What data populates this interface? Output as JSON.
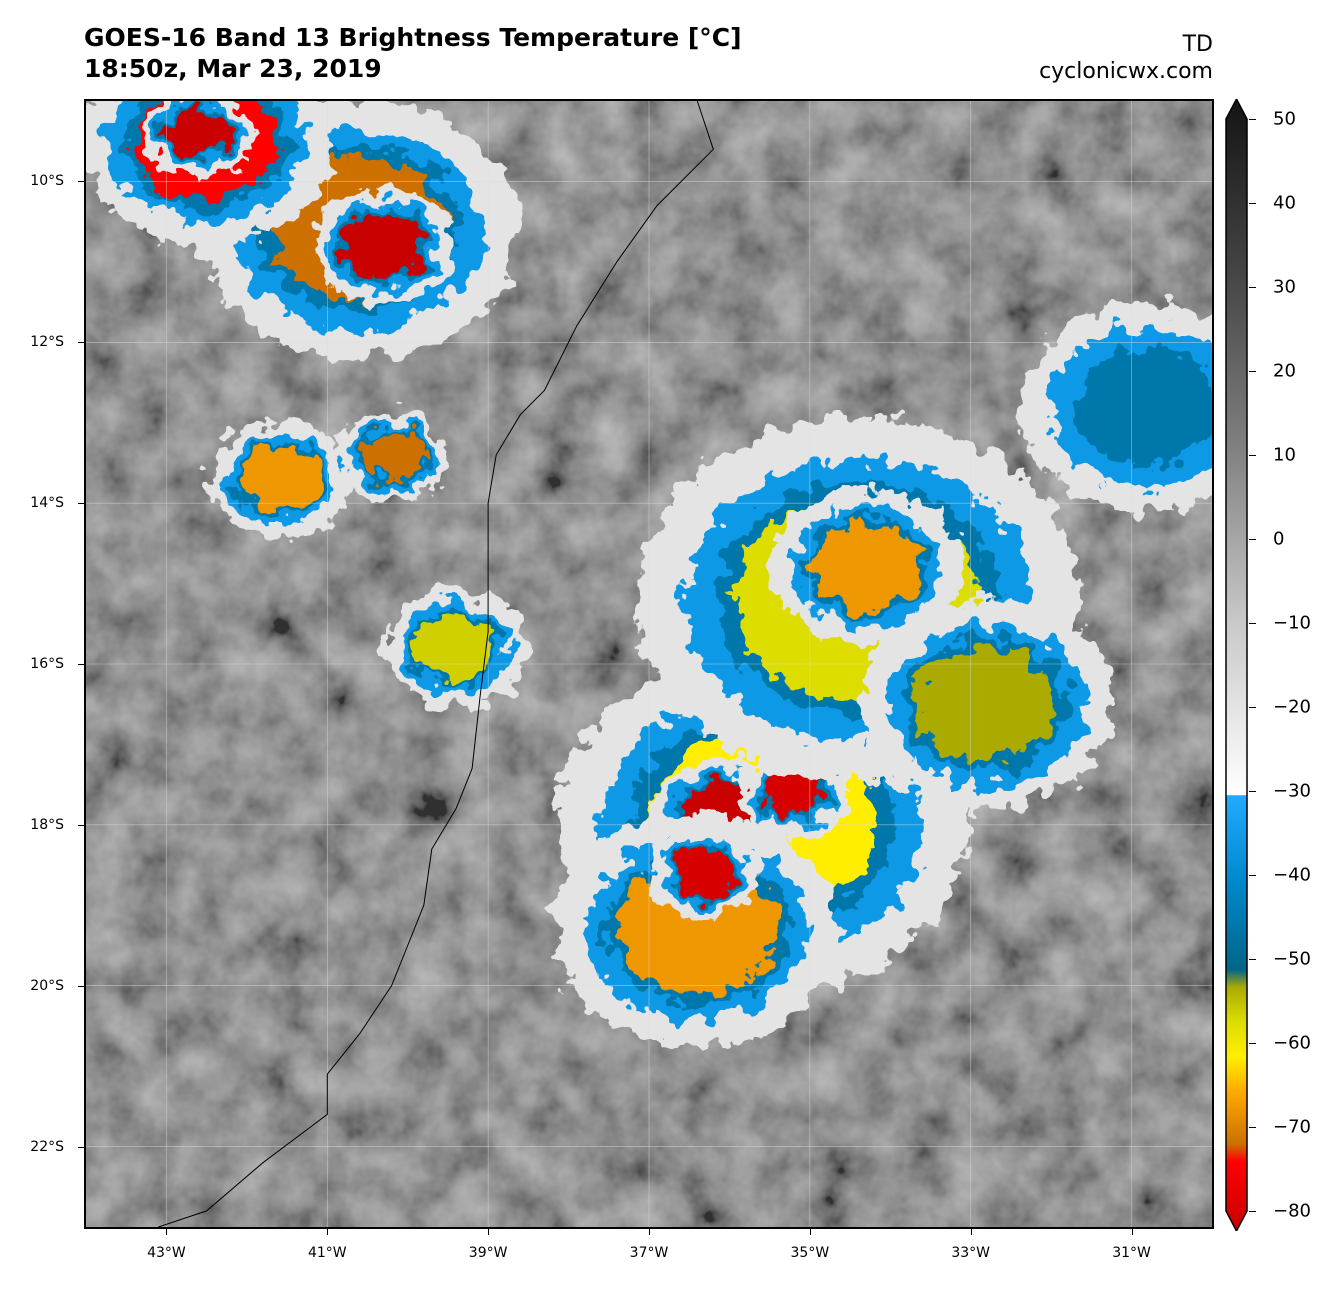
{
  "header": {
    "title_line1": "GOES-16 Band 13 Brightness Temperature [°C]",
    "title_line2": "18:50z, Mar 23, 2019",
    "storm_label": "TD",
    "site": "cyclonicwx.com"
  },
  "map": {
    "extent": {
      "lon_min": -44.0,
      "lon_max": -30.0,
      "lat_min": -23.0,
      "lat_max": -9.0
    },
    "lat_labels": [
      {
        "text": "10°S",
        "lat": -10
      },
      {
        "text": "12°S",
        "lat": -12
      },
      {
        "text": "14°S",
        "lat": -14
      },
      {
        "text": "16°S",
        "lat": -16
      },
      {
        "text": "18°S",
        "lat": -18
      },
      {
        "text": "20°S",
        "lat": -20
      },
      {
        "text": "22°S",
        "lat": -22
      }
    ],
    "lon_labels": [
      {
        "text": "43°W",
        "lon": -43
      },
      {
        "text": "41°W",
        "lon": -41
      },
      {
        "text": "39°W",
        "lon": -39
      },
      {
        "text": "37°W",
        "lon": -37
      },
      {
        "text": "35°W",
        "lon": -35
      },
      {
        "text": "33°W",
        "lon": -33
      },
      {
        "text": "31°W",
        "lon": -31
      }
    ],
    "coastline": [
      [
        -36.4,
        -9.0
      ],
      [
        -36.2,
        -9.6
      ],
      [
        -36.9,
        -10.3
      ],
      [
        -37.4,
        -11.0
      ],
      [
        -37.9,
        -11.8
      ],
      [
        -38.3,
        -12.6
      ],
      [
        -38.6,
        -12.9
      ],
      [
        -38.9,
        -13.4
      ],
      [
        -39.0,
        -14.0
      ],
      [
        -39.0,
        -14.8
      ],
      [
        -39.0,
        -15.6
      ],
      [
        -39.1,
        -16.4
      ],
      [
        -39.2,
        -17.3
      ],
      [
        -39.4,
        -17.8
      ],
      [
        -39.7,
        -18.3
      ],
      [
        -39.8,
        -19.0
      ],
      [
        -40.0,
        -19.5
      ],
      [
        -40.2,
        -20.0
      ],
      [
        -40.6,
        -20.6
      ],
      [
        -41.0,
        -21.1
      ],
      [
        -41.0,
        -21.6
      ],
      [
        -41.8,
        -22.2
      ],
      [
        -42.5,
        -22.8
      ],
      [
        -43.1,
        -23.0
      ]
    ],
    "cloud_features": [
      {
        "name": "system-core",
        "lon": -35.6,
        "lat": -18.0,
        "r": 1.3,
        "temp": -60
      },
      {
        "name": "cold-core-west",
        "lon": -36.1,
        "lat": -17.9,
        "r": 0.45,
        "temp": -85
      },
      {
        "name": "cold-core-east",
        "lon": -35.2,
        "lat": -17.6,
        "r": 0.35,
        "temp": -78
      },
      {
        "name": "southwest-band",
        "lon": -36.4,
        "lat": -19.3,
        "r": 0.9,
        "temp": -66
      },
      {
        "name": "southwest-band-core",
        "lon": -36.3,
        "lat": -18.6,
        "r": 0.35,
        "temp": -78
      },
      {
        "name": "northeast-shield",
        "lon": -34.4,
        "lat": -15.2,
        "r": 1.4,
        "temp": -56
      },
      {
        "name": "northeast-shield-core",
        "lon": -34.3,
        "lat": -14.8,
        "r": 0.6,
        "temp": -66
      },
      {
        "name": "east-cells",
        "lon": -32.8,
        "lat": -16.5,
        "r": 0.8,
        "temp": -52
      },
      {
        "name": "northwest-complex",
        "lon": -40.6,
        "lat": -10.6,
        "r": 1.0,
        "temp": -70
      },
      {
        "name": "northwest-core",
        "lon": -40.3,
        "lat": -10.8,
        "r": 0.45,
        "temp": -82
      },
      {
        "name": "north-edge",
        "lon": -42.5,
        "lat": -9.5,
        "r": 0.8,
        "temp": -72
      },
      {
        "name": "north-edge-core",
        "lon": -42.6,
        "lat": -9.4,
        "r": 0.35,
        "temp": -82
      },
      {
        "name": "west-cell-a",
        "lon": -41.6,
        "lat": -13.7,
        "r": 0.45,
        "temp": -66
      },
      {
        "name": "west-cell-b",
        "lon": -40.2,
        "lat": -13.4,
        "r": 0.35,
        "temp": -70
      },
      {
        "name": "coast-cell",
        "lon": -39.4,
        "lat": -15.8,
        "r": 0.45,
        "temp": -55
      },
      {
        "name": "far-east-band",
        "lon": -30.8,
        "lat": -12.8,
        "r": 0.8,
        "temp": -45
      }
    ]
  },
  "colorbar": {
    "min": -80,
    "max": 50,
    "tick_labels": [
      "50",
      "40",
      "30",
      "20",
      "10",
      "0",
      "−10",
      "−20",
      "−30",
      "−40",
      "−50",
      "−60",
      "−70",
      "−80"
    ],
    "tick_values": [
      50,
      40,
      30,
      20,
      10,
      0,
      -10,
      -20,
      -30,
      -40,
      -50,
      -60,
      -70,
      -80
    ],
    "stops": [
      {
        "t": -80,
        "color": "#c80000"
      },
      {
        "t": -72,
        "color": "#ff0000"
      },
      {
        "t": -70,
        "color": "#cc7000"
      },
      {
        "t": -64,
        "color": "#ffaa00"
      },
      {
        "t": -60,
        "color": "#ffee00"
      },
      {
        "t": -56,
        "color": "#dddd00"
      },
      {
        "t": -52,
        "color": "#aaaa00"
      },
      {
        "t": -50,
        "color": "#006688"
      },
      {
        "t": -40,
        "color": "#0088cc"
      },
      {
        "t": -30,
        "color": "#22aaff"
      },
      {
        "t": -29.9,
        "color": "#ffffff"
      },
      {
        "t": -10,
        "color": "#c8c8c8"
      },
      {
        "t": 10,
        "color": "#808080"
      },
      {
        "t": 30,
        "color": "#454545"
      },
      {
        "t": 50,
        "color": "#141414"
      }
    ]
  }
}
